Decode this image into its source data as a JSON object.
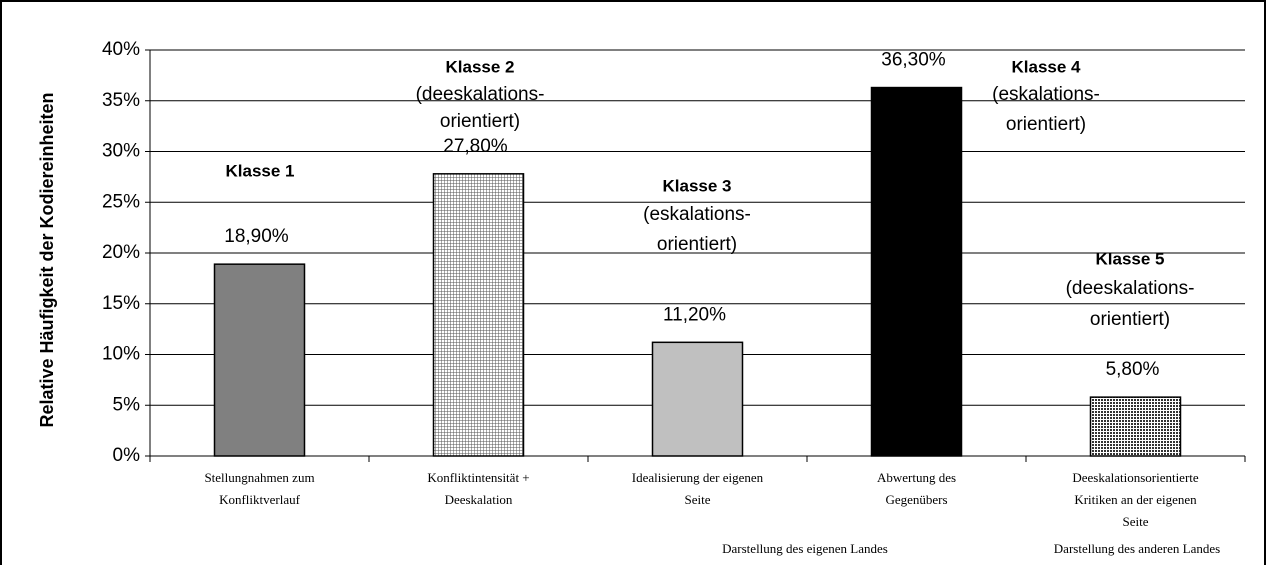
{
  "chart_data": {
    "type": "bar",
    "y_label": "Relative Häufigkeit der Kodiereinheiten",
    "categories": [
      [
        "Stellungnahmen zum",
        "Konfliktverlauf"
      ],
      [
        "Konfliktintensität +",
        "Deeskalation"
      ],
      [
        "Idealisierung der eigenen",
        "Seite"
      ],
      [
        "Abwertung des",
        "Gegenübers"
      ],
      [
        "Deeskalationsorientierte",
        "Kritiken an der eigenen",
        "Seite"
      ]
    ],
    "groups": [
      "Darstellung des eigenen Landes",
      "Darstellung des anderen Landes"
    ],
    "values": [
      18.9,
      27.8,
      11.2,
      36.3,
      5.8
    ],
    "value_labels": [
      "18,90%",
      "27,80%",
      "11,20%",
      "36,30%",
      "5,80%"
    ],
    "colors": [
      "#808080",
      "#e8e8e8",
      "#c0c0c0",
      "#000000",
      "#c8c8c8"
    ],
    "patterns": [
      "solid",
      "grid",
      "solid",
      "solid",
      "dots"
    ],
    "annotations": [
      {
        "title": "Klasse 1"
      },
      {
        "title": "Klasse 2",
        "text": [
          "(deeskalations-",
          "orientiert)"
        ]
      },
      {
        "title": "Klasse 3",
        "text": [
          "(eskalations-",
          "orientiert)"
        ]
      },
      {
        "title": "Klasse 4",
        "text": [
          "(eskalations-",
          "orientiert)"
        ]
      },
      {
        "title": "Klasse 5",
        "text": [
          "(deeskalations-",
          "orientiert)"
        ]
      }
    ],
    "ylim": [
      0,
      40
    ],
    "yticks": [
      {
        "value": 0,
        "label": "0%"
      },
      {
        "value": 5,
        "label": "5%"
      },
      {
        "value": 10,
        "label": "10%"
      },
      {
        "value": 15,
        "label": "15%"
      },
      {
        "value": 20,
        "label": "20%"
      },
      {
        "value": 25,
        "label": "25%"
      },
      {
        "value": 30,
        "label": "30%"
      },
      {
        "value": 35,
        "label": "35%"
      },
      {
        "value": 40,
        "label": "40%"
      }
    ],
    "grid": true
  }
}
